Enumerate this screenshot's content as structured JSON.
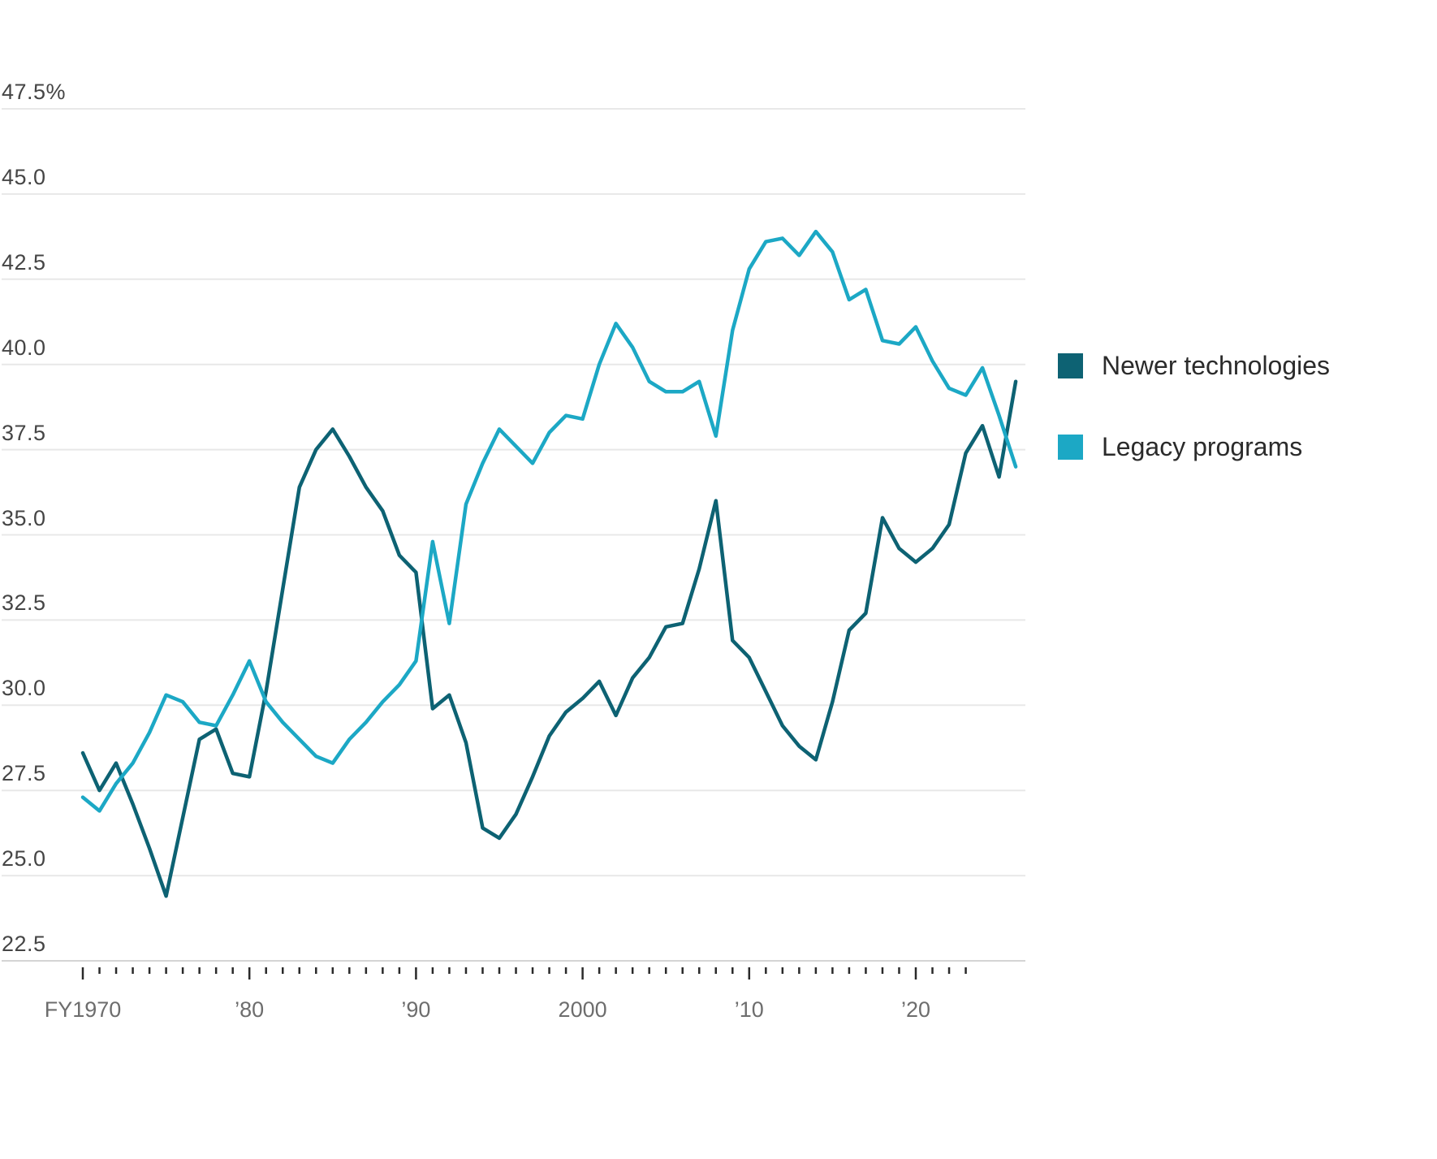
{
  "chart_data": {
    "type": "line",
    "title": "",
    "xlabel": "",
    "ylabel": "",
    "unit": "%",
    "ylim": [
      22.5,
      47.5
    ],
    "grid": "horizontal",
    "legend_position": "right",
    "y_ticks": [
      {
        "value": 47.5,
        "label": "47.5%"
      },
      {
        "value": 45.0,
        "label": "45.0"
      },
      {
        "value": 42.5,
        "label": "42.5"
      },
      {
        "value": 40.0,
        "label": "40.0"
      },
      {
        "value": 37.5,
        "label": "37.5"
      },
      {
        "value": 35.0,
        "label": "35.0"
      },
      {
        "value": 32.5,
        "label": "32.5"
      },
      {
        "value": 30.0,
        "label": "30.0"
      },
      {
        "value": 27.5,
        "label": "27.5"
      },
      {
        "value": 25.0,
        "label": "25.0"
      },
      {
        "value": 22.5,
        "label": "22.5"
      }
    ],
    "x_ticks_major": [
      {
        "year": 1970,
        "label": "FY1970"
      },
      {
        "year": 1980,
        "label": "’80"
      },
      {
        "year": 1990,
        "label": "’90"
      },
      {
        "year": 2000,
        "label": "2000"
      },
      {
        "year": 2010,
        "label": "’10"
      },
      {
        "year": 2020,
        "label": "’20"
      }
    ],
    "x_minor_ticks_every_year_from": 1970,
    "x_minor_ticks_every_year_to": 2023,
    "x": [
      1970,
      1971,
      1972,
      1973,
      1974,
      1975,
      1976,
      1977,
      1978,
      1979,
      1980,
      1981,
      1982,
      1983,
      1984,
      1985,
      1986,
      1987,
      1988,
      1989,
      1990,
      1991,
      1992,
      1993,
      1994,
      1995,
      1996,
      1997,
      1998,
      1999,
      2000,
      2001,
      2002,
      2003,
      2004,
      2005,
      2006,
      2007,
      2008,
      2009,
      2010,
      2011,
      2012,
      2013,
      2014,
      2015,
      2016,
      2017,
      2018,
      2019,
      2020,
      2021,
      2022,
      2023,
      2024,
      2025,
      2026
    ],
    "series": [
      {
        "name": "Newer technologies",
        "color": "#0d6273",
        "values": [
          28.6,
          27.5,
          28.3,
          27.1,
          25.8,
          24.4,
          26.7,
          29.0,
          29.3,
          28.0,
          27.9,
          30.4,
          33.4,
          36.4,
          37.5,
          38.1,
          37.3,
          36.4,
          35.7,
          34.4,
          33.9,
          29.9,
          30.3,
          28.9,
          26.4,
          26.1,
          26.8,
          27.9,
          29.1,
          29.8,
          30.2,
          30.7,
          29.7,
          30.8,
          31.4,
          32.3,
          32.4,
          34.0,
          36.0,
          31.9,
          31.4,
          30.4,
          29.4,
          28.8,
          28.4,
          30.1,
          32.2,
          32.7,
          35.5,
          34.6,
          34.2,
          34.6,
          35.3,
          37.4,
          38.2,
          36.7,
          39.5
        ]
      },
      {
        "name": "Legacy programs",
        "color": "#1ca8c5",
        "values": [
          27.3,
          26.9,
          27.7,
          28.3,
          29.2,
          30.3,
          30.1,
          29.5,
          29.4,
          30.3,
          31.3,
          30.1,
          29.5,
          29.0,
          28.5,
          28.3,
          29.0,
          29.5,
          30.1,
          30.6,
          31.3,
          34.8,
          32.4,
          35.9,
          37.1,
          38.1,
          37.6,
          37.1,
          38.0,
          38.5,
          38.4,
          40.0,
          41.2,
          40.5,
          39.5,
          39.2,
          39.2,
          39.5,
          37.9,
          41.0,
          42.8,
          43.6,
          43.7,
          43.2,
          43.9,
          43.3,
          41.9,
          42.2,
          40.7,
          40.6,
          41.1,
          40.1,
          39.3,
          39.1,
          39.9,
          38.5,
          37.0
        ]
      }
    ]
  },
  "colors": {
    "gridline": "#e8e8e8",
    "baseline": "#d4d4d4",
    "tick": "#2a2a2a"
  }
}
